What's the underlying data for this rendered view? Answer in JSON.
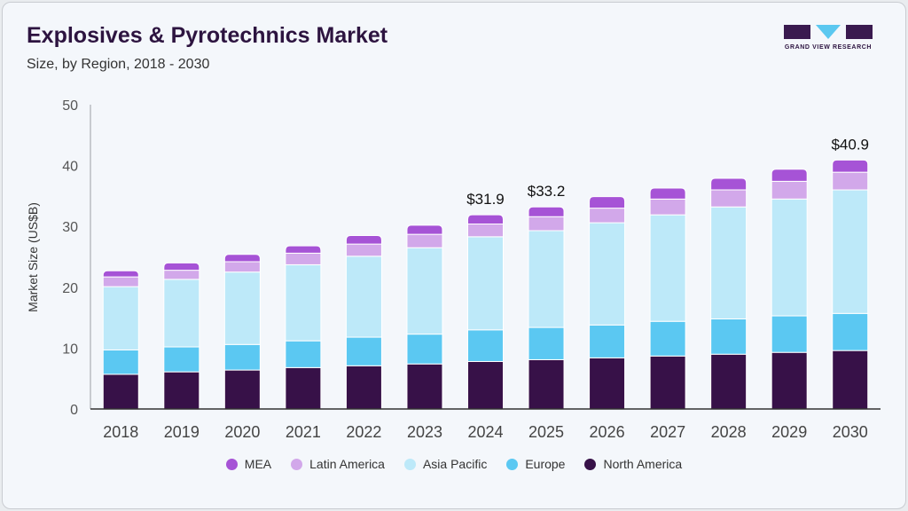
{
  "header": {
    "title": "Explosives & Pyrotechnics Market",
    "subtitle": "Size, by Region, 2018 - 2030"
  },
  "logo": {
    "text": "GRAND VIEW RESEARCH",
    "colors": {
      "block": "#3a1a4f",
      "triangle": "#5bc8f0"
    }
  },
  "chart_data": {
    "type": "bar",
    "stacked": true,
    "title": "Explosives & Pyrotechnics Market",
    "subtitle": "Size, by Region, 2018 - 2030",
    "xlabel": "",
    "ylabel": "Market Size (US$B)",
    "ylim": [
      0,
      50
    ],
    "yticks": [
      0,
      10,
      20,
      30,
      40,
      50
    ],
    "grid": false,
    "legend_position": "bottom",
    "categories": [
      "2018",
      "2019",
      "2020",
      "2021",
      "2022",
      "2023",
      "2024",
      "2025",
      "2026",
      "2027",
      "2028",
      "2029",
      "2030"
    ],
    "series": [
      {
        "name": "North America",
        "color": "#371148",
        "values": [
          5.7,
          6.1,
          6.4,
          6.8,
          7.1,
          7.4,
          7.8,
          8.1,
          8.4,
          8.7,
          9.0,
          9.3,
          9.6
        ]
      },
      {
        "name": "Europe",
        "color": "#5bc8f2",
        "values": [
          4.0,
          4.1,
          4.2,
          4.4,
          4.7,
          4.9,
          5.2,
          5.3,
          5.4,
          5.7,
          5.8,
          6.0,
          6.1
        ]
      },
      {
        "name": "Asia Pacific",
        "color": "#bde9f9",
        "values": [
          10.4,
          11.1,
          11.9,
          12.5,
          13.3,
          14.2,
          15.3,
          15.9,
          16.8,
          17.5,
          18.4,
          19.2,
          20.3
        ]
      },
      {
        "name": "Latin America",
        "color": "#d2a8ea",
        "values": [
          1.6,
          1.5,
          1.7,
          1.9,
          2.0,
          2.2,
          2.1,
          2.3,
          2.4,
          2.6,
          2.8,
          2.9,
          2.9
        ]
      },
      {
        "name": "MEA",
        "color": "#a653d6",
        "values": [
          1.0,
          1.2,
          1.2,
          1.2,
          1.4,
          1.5,
          1.5,
          1.6,
          1.9,
          1.8,
          1.9,
          2.0,
          2.0
        ]
      }
    ],
    "annotations": [
      {
        "category": "2024",
        "text": "$31.9"
      },
      {
        "category": "2025",
        "text": "$33.2"
      },
      {
        "category": "2030",
        "text": "$40.9"
      }
    ],
    "legend_order": [
      "MEA",
      "Latin America",
      "Asia Pacific",
      "Europe",
      "North America"
    ]
  }
}
